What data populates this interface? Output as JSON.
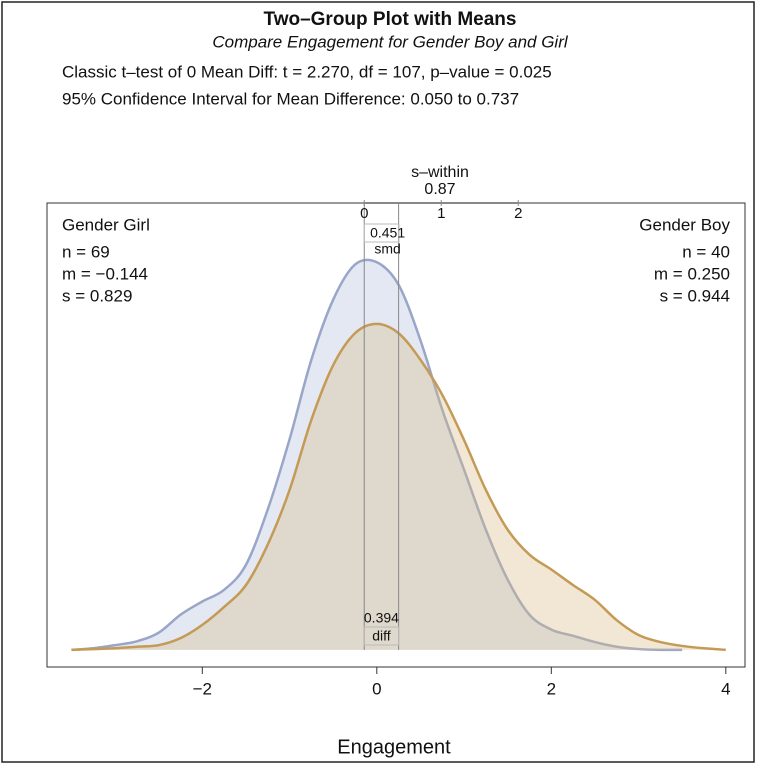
{
  "chart_data": {
    "type": "density",
    "title": "Two–Group Plot with Means",
    "subtitle": "Compare Engagement for Gender Boy and Girl",
    "stats": [
      "Classic t–test of 0 Mean Diff:   t = 2.270,  df = 107,   p–value = 0.025",
      "95% Confidence Interval for Mean Difference:  0.050 to 0.737"
    ],
    "x_label": "Engagement",
    "x": [
      -3.5,
      -3.25,
      -3,
      -2.75,
      -2.5,
      -2.25,
      -2,
      -1.75,
      -1.5,
      -1.25,
      -1,
      -0.75,
      -0.5,
      -0.25,
      0,
      0.25,
      0.5,
      0.75,
      1,
      1.25,
      1.5,
      1.75,
      2,
      2.25,
      2.5,
      2.75,
      3,
      3.25,
      3.5,
      3.75,
      4
    ],
    "series": [
      {
        "name": "Gender Girl",
        "stats": [
          "n = 69",
          "m = −0.144",
          "s = 0.829"
        ],
        "mean": -0.144,
        "color": "#9aa6c8",
        "fill": "rgba(196,203,229,0.45)",
        "values": [
          0,
          0.002,
          0.006,
          0.011,
          0.022,
          0.045,
          0.062,
          0.077,
          0.109,
          0.18,
          0.27,
          0.372,
          0.449,
          0.494,
          0.497,
          0.468,
          0.397,
          0.308,
          0.231,
          0.154,
          0.09,
          0.045,
          0.026,
          0.018,
          0.01,
          0.004,
          0.001,
          0,
          0,
          null,
          null
        ]
      },
      {
        "name": "Gender Boy",
        "stats": [
          "n = 40",
          "m = 0.250",
          "s = 0.944"
        ],
        "mean": 0.25,
        "color": "#c49a55",
        "fill": "rgba(214,186,132,0.35)",
        "values": [
          0,
          0.001,
          0.002,
          0.004,
          0.006,
          0.015,
          0.032,
          0.055,
          0.083,
          0.135,
          0.205,
          0.295,
          0.365,
          0.406,
          0.418,
          0.406,
          0.372,
          0.327,
          0.269,
          0.205,
          0.154,
          0.122,
          0.103,
          0.083,
          0.064,
          0.038,
          0.019,
          0.01,
          0.005,
          0.002,
          0
        ]
      }
    ],
    "xlim": [
      -3.78,
      4.22
    ],
    "ylim": [
      -0.022,
      0.573
    ],
    "xticks": [
      {
        "value": -2,
        "label": "−2"
      },
      0,
      2,
      4
    ],
    "s_within": {
      "label": "s–within",
      "value_label": "0.87",
      "xlim": [
        0,
        2
      ],
      "xticks": [
        0,
        1,
        2
      ]
    },
    "smd": {
      "value": 0.451,
      "label": "smd"
    },
    "diff": {
      "value": 0.394,
      "label": "diff"
    }
  }
}
